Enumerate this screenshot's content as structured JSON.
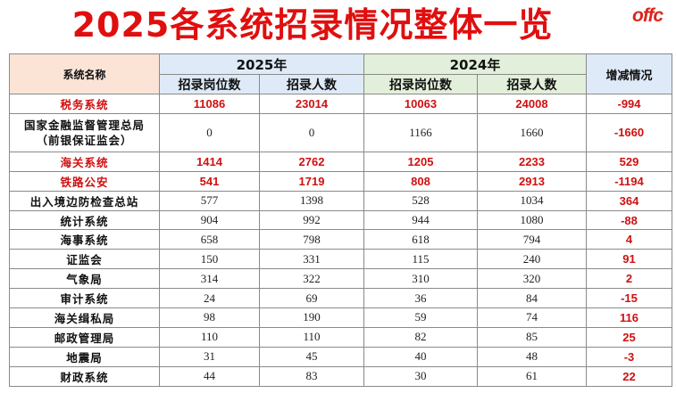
{
  "title": "2025各系统招录情况整体一览",
  "logo_text": "offc",
  "headers": {
    "name": "系统名称",
    "year_2025": "2025年",
    "year_2024": "2024年",
    "change": "增减情况",
    "positions": "招录岗位数",
    "people": "招录人数"
  },
  "colors": {
    "highlight": "#d01010",
    "header_blue": "#deeaf7",
    "header_green": "#e2efda",
    "header_peach": "#fbe4d6"
  },
  "rows": [
    {
      "name": "税务系统",
      "p2025": "11086",
      "n2025": "23014",
      "p2024": "10063",
      "n2024": "24008",
      "change": "-994"
    },
    {
      "name": "国家金融监督管理总局",
      "name2": "（前银保证监会）",
      "p2025": "0",
      "n2025": "0",
      "p2024": "1166",
      "n2024": "1660",
      "change": "-1660"
    },
    {
      "name": "海关系统",
      "p2025": "1414",
      "n2025": "2762",
      "p2024": "1205",
      "n2024": "2233",
      "change": "529"
    },
    {
      "name": "铁路公安",
      "p2025": "541",
      "n2025": "1719",
      "p2024": "808",
      "n2024": "2913",
      "change": "-1194"
    },
    {
      "name": "出入境边防检查总站",
      "p2025": "577",
      "n2025": "1398",
      "p2024": "528",
      "n2024": "1034",
      "change": "364"
    },
    {
      "name": "统计系统",
      "p2025": "904",
      "n2025": "992",
      "p2024": "944",
      "n2024": "1080",
      "change": "-88"
    },
    {
      "name": "海事系统",
      "p2025": "658",
      "n2025": "798",
      "p2024": "618",
      "n2024": "794",
      "change": "4"
    },
    {
      "name": "证监会",
      "p2025": "150",
      "n2025": "331",
      "p2024": "115",
      "n2024": "240",
      "change": "91"
    },
    {
      "name": "气象局",
      "p2025": "314",
      "n2025": "322",
      "p2024": "310",
      "n2024": "320",
      "change": "2"
    },
    {
      "name": "审计系统",
      "p2025": "24",
      "n2025": "69",
      "p2024": "36",
      "n2024": "84",
      "change": "-15"
    },
    {
      "name": "海关缉私局",
      "p2025": "98",
      "n2025": "190",
      "p2024": "59",
      "n2024": "74",
      "change": "116"
    },
    {
      "name": "邮政管理局",
      "p2025": "110",
      "n2025": "110",
      "p2024": "82",
      "n2024": "85",
      "change": "25"
    },
    {
      "name": "地震局",
      "p2025": "31",
      "n2025": "45",
      "p2024": "40",
      "n2024": "48",
      "change": "-3"
    },
    {
      "name": "财政系统",
      "p2025": "44",
      "n2025": "83",
      "p2024": "30",
      "n2024": "61",
      "change": "22"
    }
  ]
}
